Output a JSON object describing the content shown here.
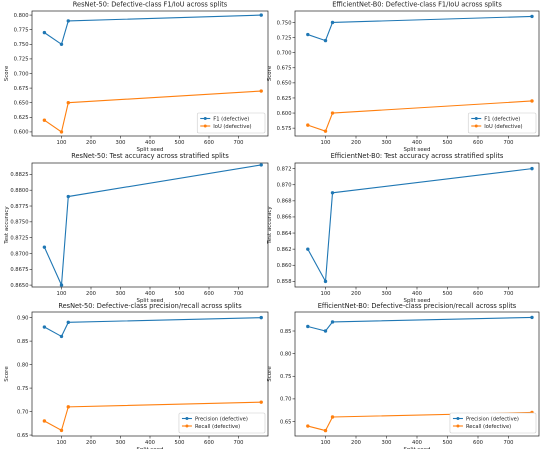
{
  "chart_data": [
    {
      "type": "line",
      "title": "ResNet-50: Defective-class F1/IoU across splits",
      "xlabel": "Split seed",
      "ylabel": "Score",
      "x": [
        42,
        100,
        123,
        777
      ],
      "xticks": [
        100,
        200,
        300,
        400,
        500,
        600,
        700
      ],
      "xlim": [
        0,
        800
      ],
      "ylim": [
        0.593,
        0.807
      ],
      "yticks": [
        0.6,
        0.625,
        0.65,
        0.675,
        0.7,
        0.725,
        0.75,
        0.775,
        0.8
      ],
      "ytick_decimals": 3,
      "grid": false,
      "legend_loc": "lower-right",
      "series": [
        {
          "name": "F1 (defective)",
          "values": [
            0.77,
            0.75,
            0.79,
            0.8
          ],
          "color": "#1f77b4"
        },
        {
          "name": "IoU (defective)",
          "values": [
            0.62,
            0.6,
            0.65,
            0.67
          ],
          "color": "#ff7f0e"
        }
      ]
    },
    {
      "type": "line",
      "title": "EfficientNet-B0: Defective-class F1/IoU across splits",
      "xlabel": "Split seed",
      "ylabel": "Score",
      "x": [
        42,
        100,
        123,
        777
      ],
      "xticks": [
        100,
        200,
        300,
        400,
        500,
        600,
        700
      ],
      "xlim": [
        0,
        800
      ],
      "ylim": [
        0.562,
        0.769
      ],
      "yticks": [
        0.575,
        0.6,
        0.625,
        0.65,
        0.675,
        0.7,
        0.725,
        0.75
      ],
      "ytick_decimals": 3,
      "grid": false,
      "legend_loc": "lower-right",
      "series": [
        {
          "name": "F1 (defective)",
          "values": [
            0.73,
            0.72,
            0.75,
            0.76
          ],
          "color": "#1f77b4"
        },
        {
          "name": "IoU (defective)",
          "values": [
            0.58,
            0.57,
            0.6,
            0.62
          ],
          "color": "#ff7f0e"
        }
      ]
    },
    {
      "type": "line",
      "title": "ResNet-50: Test accuracy across stratified splits",
      "xlabel": "Split seed",
      "ylabel": "Test accuracy",
      "x": [
        42,
        100,
        123,
        777
      ],
      "xticks": [
        100,
        200,
        300,
        400,
        500,
        600,
        700
      ],
      "xlim": [
        0,
        800
      ],
      "ylim": [
        0.8647,
        0.8843
      ],
      "yticks": [
        0.865,
        0.8675,
        0.87,
        0.8725,
        0.875,
        0.8775,
        0.88,
        0.8825
      ],
      "ytick_decimals": 4,
      "grid": false,
      "legend_loc": "",
      "series": [
        {
          "values": [
            0.871,
            0.865,
            0.879,
            0.884
          ],
          "color": "#1f77b4"
        }
      ]
    },
    {
      "type": "line",
      "title": "EfficientNet-B0: Test accuracy across stratified splits",
      "xlabel": "Split seed",
      "ylabel": "Test accuracy",
      "x": [
        42,
        100,
        123,
        777
      ],
      "xticks": [
        100,
        200,
        300,
        400,
        500,
        600,
        700
      ],
      "xlim": [
        0,
        800
      ],
      "ylim": [
        0.8573,
        0.8727
      ],
      "yticks": [
        0.858,
        0.86,
        0.862,
        0.864,
        0.866,
        0.868,
        0.87,
        0.872
      ],
      "ytick_decimals": 3,
      "grid": false,
      "legend_loc": "",
      "series": [
        {
          "values": [
            0.862,
            0.858,
            0.869,
            0.872
          ],
          "color": "#1f77b4"
        }
      ]
    },
    {
      "type": "line",
      "title": "ResNet-50: Defective-class precision/recall across splits",
      "xlabel": "Split seed",
      "ylabel": "Score",
      "x": [
        42,
        100,
        123,
        777
      ],
      "xticks": [
        100,
        200,
        300,
        400,
        500,
        600,
        700
      ],
      "xlim": [
        0,
        800
      ],
      "ylim": [
        0.648,
        0.912
      ],
      "yticks": [
        0.65,
        0.7,
        0.75,
        0.8,
        0.85,
        0.9
      ],
      "ytick_decimals": 2,
      "grid": false,
      "legend_loc": "lower-right",
      "series": [
        {
          "name": "Precision (defective)",
          "values": [
            0.88,
            0.86,
            0.89,
            0.9
          ],
          "color": "#1f77b4"
        },
        {
          "name": "Recall (defective)",
          "values": [
            0.68,
            0.66,
            0.71,
            0.72
          ],
          "color": "#ff7f0e"
        }
      ]
    },
    {
      "type": "line",
      "title": "EfficientNet-B0: Defective-class precision/recall across splits",
      "xlabel": "Split seed",
      "ylabel": "Score",
      "x": [
        42,
        100,
        123,
        777
      ],
      "xticks": [
        100,
        200,
        300,
        400,
        500,
        600,
        700
      ],
      "xlim": [
        0,
        800
      ],
      "ylim": [
        0.618,
        0.892
      ],
      "yticks": [
        0.65,
        0.7,
        0.75,
        0.8,
        0.85
      ],
      "ytick_decimals": 2,
      "grid": false,
      "legend_loc": "lower-right",
      "series": [
        {
          "name": "Precision (defective)",
          "values": [
            0.86,
            0.85,
            0.87,
            0.88
          ],
          "color": "#1f77b4"
        },
        {
          "name": "Recall (defective)",
          "values": [
            0.64,
            0.63,
            0.66,
            0.67
          ],
          "color": "#ff7f0e"
        }
      ]
    }
  ]
}
